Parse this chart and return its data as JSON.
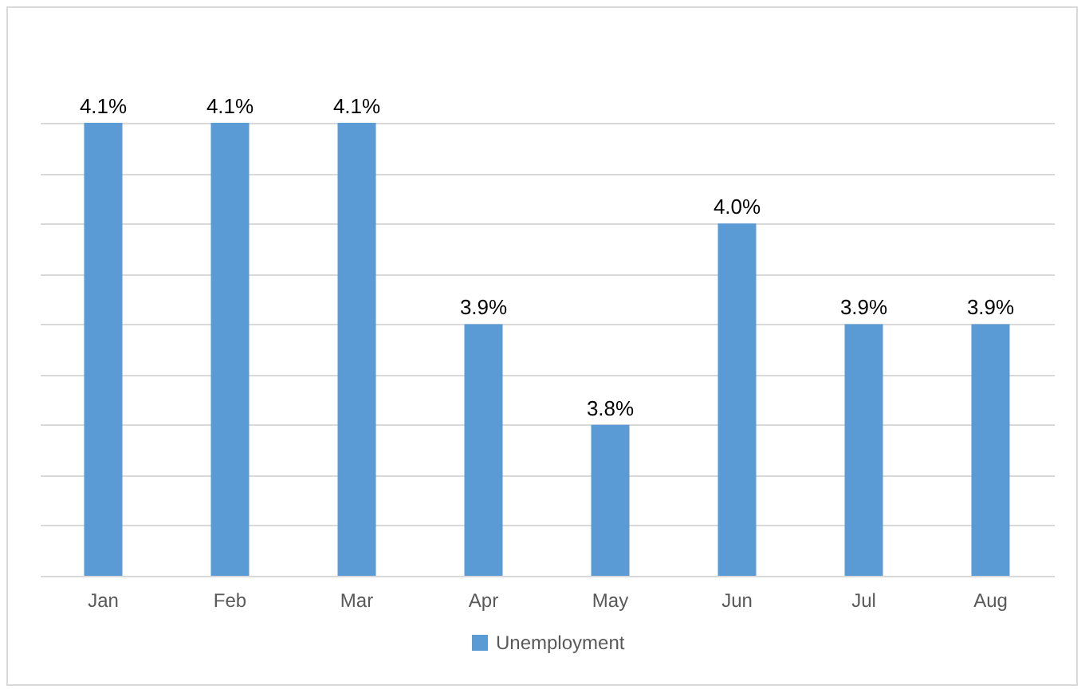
{
  "chart_data": {
    "type": "bar",
    "categories": [
      "Jan",
      "Feb",
      "Mar",
      "Apr",
      "May",
      "Jun",
      "Jul",
      "Aug"
    ],
    "series": [
      {
        "name": "Unemployment",
        "color": "#5b9bd5",
        "values": [
          4.1,
          4.1,
          4.1,
          3.9,
          3.8,
          4.0,
          3.9,
          3.9
        ],
        "value_labels": [
          "4.1%",
          "4.1%",
          "4.1%",
          "3.9%",
          "3.8%",
          "4.0%",
          "3.9%",
          "3.9%"
        ]
      }
    ],
    "ylim": [
      3.65,
      4.1
    ],
    "yticks": [
      {
        "value": 3.65,
        "label": null
      },
      {
        "value": 3.7,
        "label": null
      },
      {
        "value": 3.75,
        "label": null
      },
      {
        "value": 3.8,
        "label": null
      },
      {
        "value": 3.85,
        "label": null
      },
      {
        "value": 3.9,
        "label": null
      },
      {
        "value": 3.95,
        "label": null
      },
      {
        "value": 4.0,
        "label": null
      },
      {
        "value": 4.05,
        "label": null
      },
      {
        "value": 4.1,
        "label": null
      }
    ],
    "tick_labels": "x",
    "grid": "y",
    "legend": "bottom"
  }
}
